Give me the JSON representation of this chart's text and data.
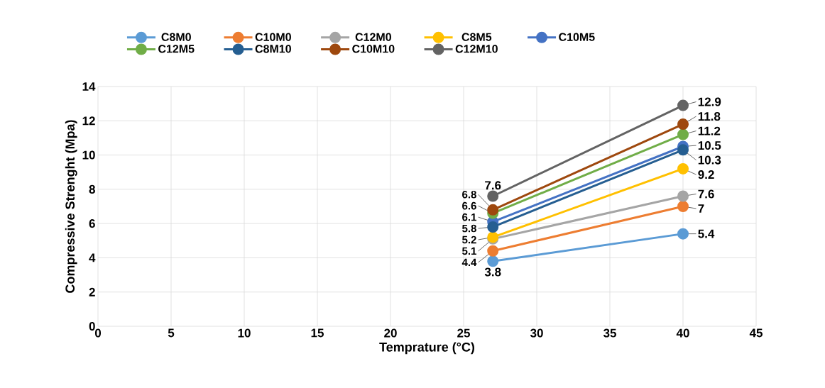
{
  "chart_data": {
    "type": "line",
    "xlabel": "Temprature (°C)",
    "ylabel": "Compressive  Strenght (Mpa)",
    "x": [
      27,
      40
    ],
    "xlim": [
      0,
      45
    ],
    "xticks": [
      0,
      5,
      10,
      15,
      20,
      25,
      30,
      35,
      40,
      45
    ],
    "ylim": [
      0,
      14
    ],
    "yticks": [
      0,
      2,
      4,
      6,
      8,
      10,
      12,
      14
    ],
    "grid": true,
    "legend": "top",
    "marker": "circle",
    "line_style": "solid",
    "data_labels": true,
    "series": [
      {
        "name": "C8M0",
        "color": "#5b9bd5",
        "values": [
          3.8,
          5.4
        ]
      },
      {
        "name": "C10M0",
        "color": "#ed7d31",
        "values": [
          4.4,
          7
        ]
      },
      {
        "name": "C12M0",
        "color": "#a5a5a5",
        "values": [
          5.1,
          7.6
        ]
      },
      {
        "name": "C8M5",
        "color": "#ffc000",
        "values": [
          5.2,
          9.2
        ]
      },
      {
        "name": "C10M5",
        "color": "#4472c4",
        "values": [
          6.1,
          10.5
        ]
      },
      {
        "name": "C12M5",
        "color": "#70ad47",
        "values": [
          6.6,
          11.2
        ]
      },
      {
        "name": "C8M10",
        "color": "#255e91",
        "values": [
          5.8,
          10.3
        ]
      },
      {
        "name": "C10M10",
        "color": "#9e480e",
        "values": [
          6.8,
          11.8
        ]
      },
      {
        "name": "C12M10",
        "color": "#636363",
        "values": [
          7.6,
          12.9
        ]
      }
    ]
  }
}
